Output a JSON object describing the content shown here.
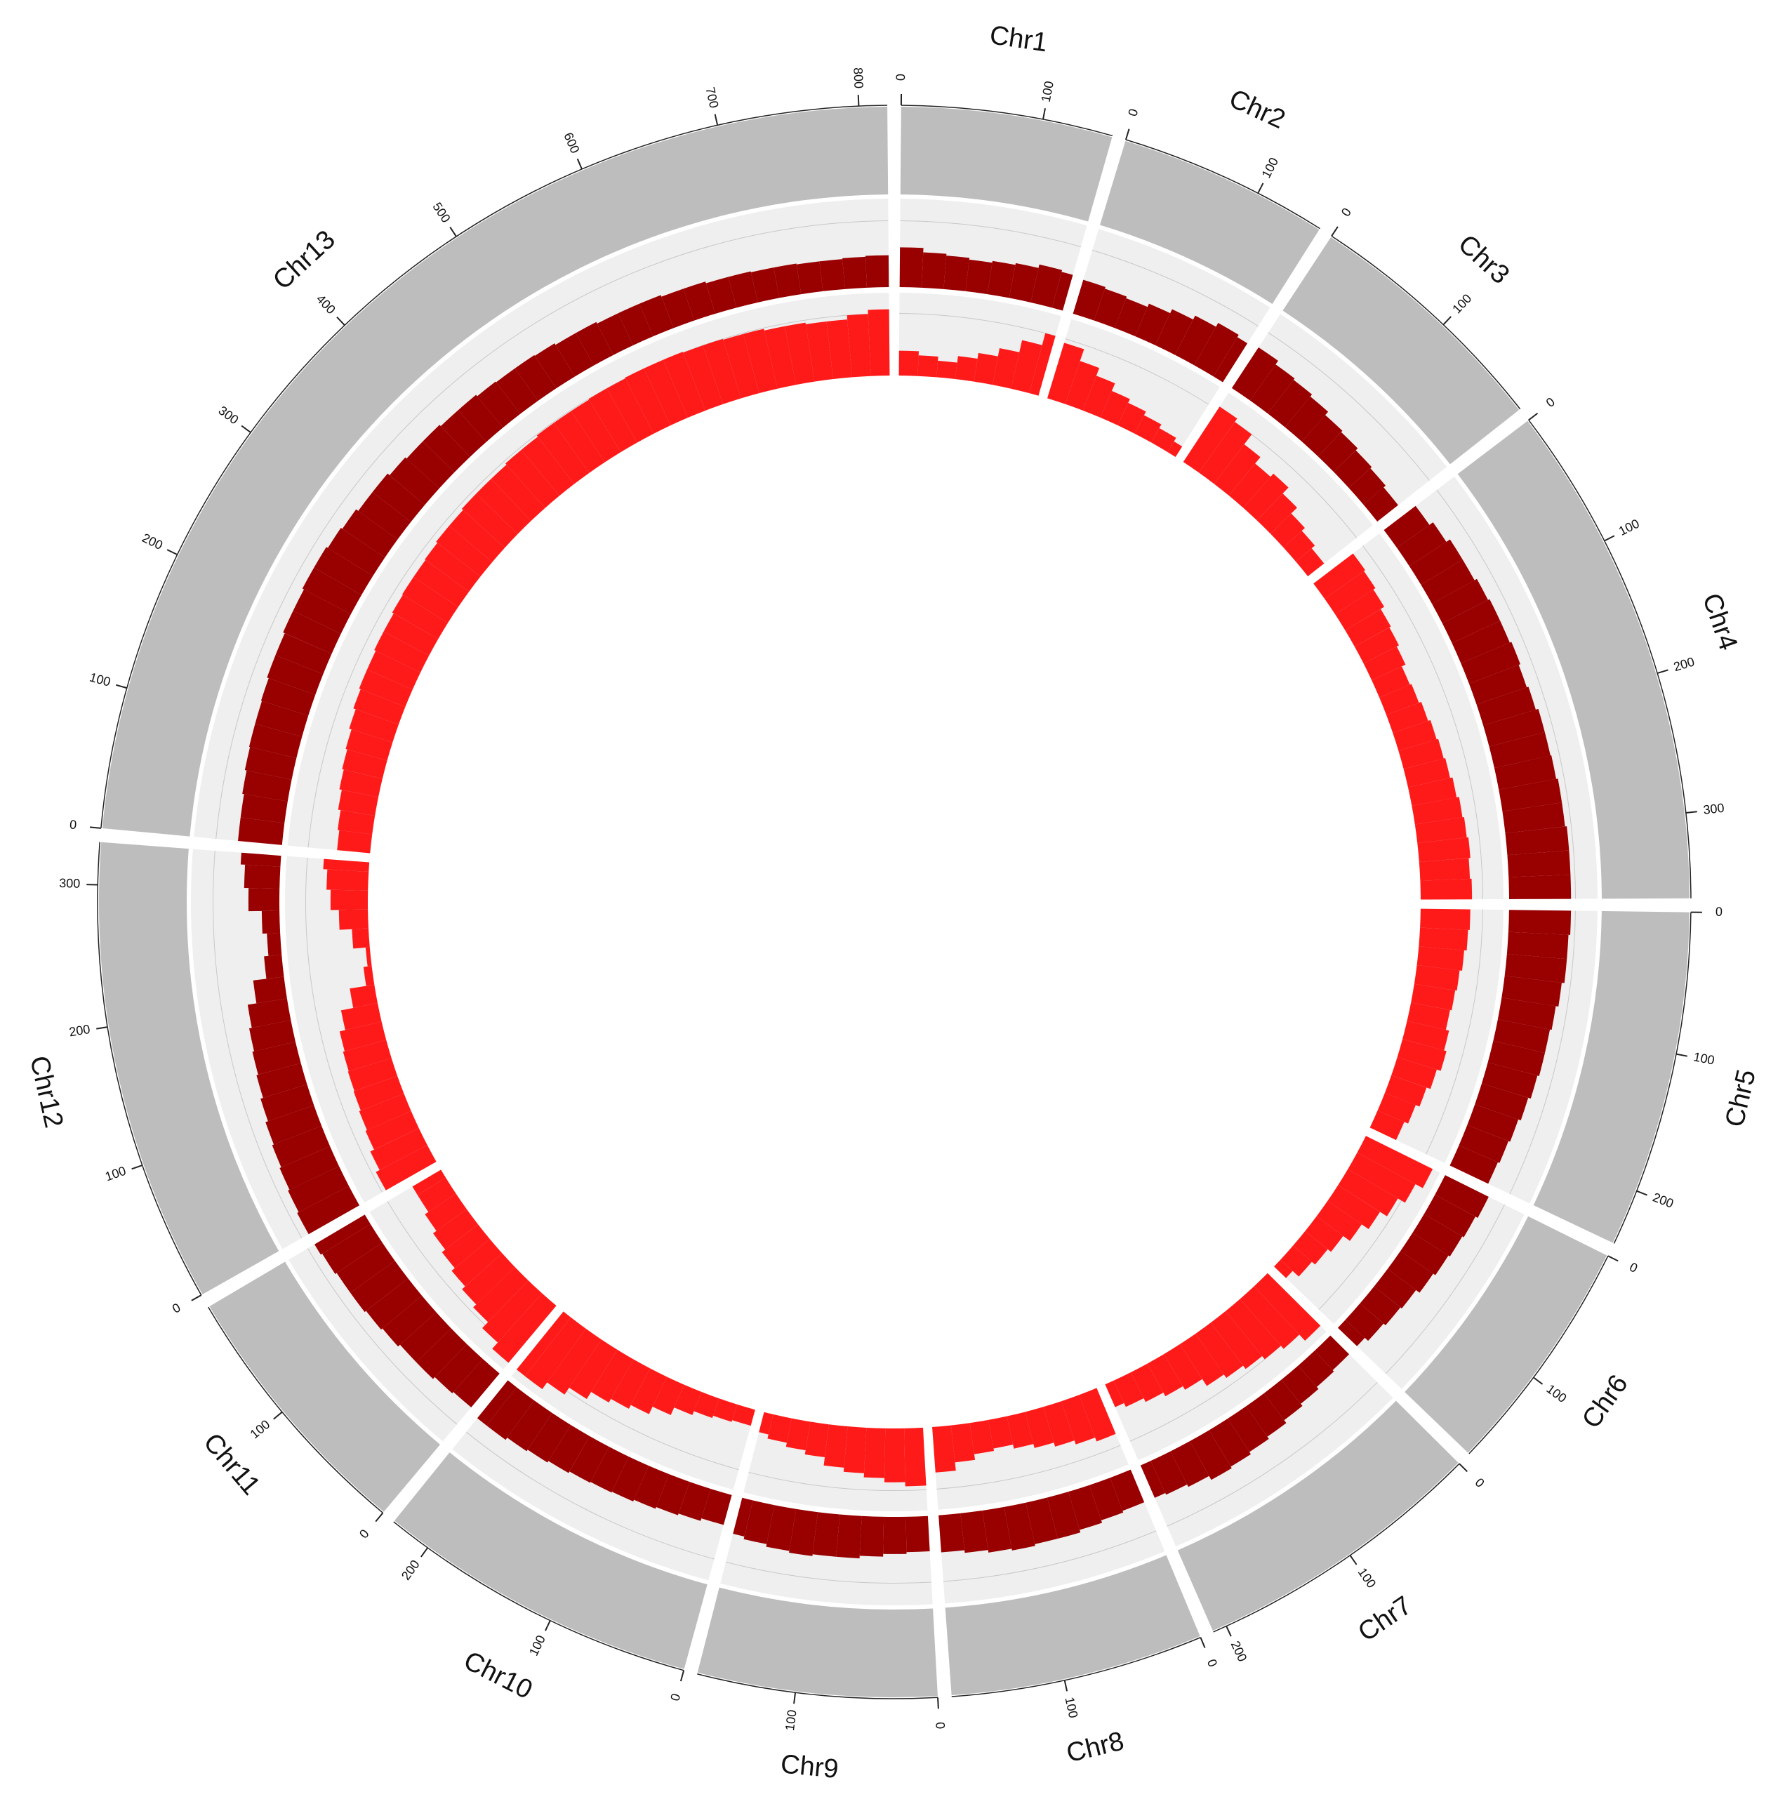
{
  "chart_data": {
    "type": "circos",
    "chromosomes": [
      {
        "name": "Chr1",
        "length": 150,
        "ticks": [
          0,
          100
        ]
      },
      {
        "name": "Chr2",
        "length": 150,
        "ticks": [
          0,
          100
        ]
      },
      {
        "name": "Chr3",
        "length": 180,
        "ticks": [
          0,
          100
        ]
      },
      {
        "name": "Chr4",
        "length": 360,
        "ticks": [
          0,
          100,
          200,
          300
        ]
      },
      {
        "name": "Chr5",
        "length": 240,
        "ticks": [
          0,
          100,
          200
        ]
      },
      {
        "name": "Chr6",
        "length": 170,
        "ticks": [
          0,
          100
        ]
      },
      {
        "name": "Chr7",
        "length": 210,
        "ticks": [
          0,
          100,
          200
        ]
      },
      {
        "name": "Chr8",
        "length": 180,
        "ticks": [
          0,
          100
        ]
      },
      {
        "name": "Chr9",
        "length": 170,
        "ticks": [
          0,
          100
        ]
      },
      {
        "name": "Chr10",
        "length": 230,
        "ticks": [
          0,
          100,
          200
        ]
      },
      {
        "name": "Chr11",
        "length": 190,
        "ticks": [
          0,
          100
        ]
      },
      {
        "name": "Chr12",
        "length": 330,
        "ticks": [
          0,
          100,
          200,
          300
        ]
      },
      {
        "name": "Chr13",
        "length": 820,
        "ticks": [
          0,
          100,
          200,
          300,
          400,
          500,
          600,
          700,
          800
        ]
      }
    ],
    "bin_size": 20,
    "ylim": [
      0,
      100
    ],
    "ideogram_color": "#bdbdbd",
    "track_background": "#efefef",
    "series": [
      {
        "color": "#990000",
        "values": [
          [
            45,
            40,
            38,
            36,
            38,
            40,
            44,
            42
          ],
          [
            40,
            38,
            36,
            40,
            45,
            50,
            55,
            52
          ],
          [
            55,
            50,
            48,
            45,
            40,
            38,
            35,
            33,
            30
          ],
          [
            45,
            50,
            55,
            55,
            58,
            60,
            60,
            62,
            60,
            62,
            65,
            65,
            66,
            68,
            68,
            70,
            70,
            70
          ],
          [
            70,
            68,
            68,
            65,
            62,
            60,
            60,
            58,
            55,
            52,
            50,
            48
          ],
          [
            55,
            52,
            50,
            48,
            45,
            40,
            38,
            35,
            30
          ],
          [
            30,
            32,
            35,
            38,
            42,
            45,
            48,
            50,
            45,
            42,
            40
          ],
          [
            40,
            42,
            45,
            48,
            48,
            50,
            48,
            45,
            42
          ],
          [
            40,
            42,
            45,
            48,
            48,
            50,
            48,
            45,
            42
          ],
          [
            35,
            38,
            40,
            42,
            44,
            45,
            46,
            48,
            50,
            52,
            55,
            55
          ],
          [
            50,
            52,
            55,
            55,
            58,
            60,
            62,
            62,
            64,
            66
          ],
          [
            66,
            64,
            62,
            60,
            58,
            55,
            52,
            50,
            48,
            45,
            35,
            20,
            15,
            20,
            35,
            40,
            45
          ],
          [
            50,
            50,
            52,
            54,
            55,
            55,
            56,
            58,
            58,
            60,
            60,
            62,
            62,
            60,
            58,
            55,
            55,
            52,
            50,
            50,
            48,
            48,
            46,
            45,
            45,
            44,
            42,
            42,
            40,
            40,
            40,
            38,
            38,
            36,
            36,
            35,
            35,
            34,
            34,
            35,
            36
          ]
        ]
      },
      {
        "color": "#ff1a1a",
        "values": [
          [
            30,
            25,
            20,
            28,
            35,
            45,
            60,
            75
          ],
          [
            70,
            55,
            45,
            35,
            30,
            25,
            20,
            15
          ],
          [
            80,
            75,
            60,
            50,
            55,
            45,
            35,
            30,
            25
          ],
          [
            60,
            58,
            55,
            50,
            48,
            45,
            40,
            42,
            45,
            48,
            50,
            52,
            55,
            58,
            60,
            62,
            60,
            62
          ],
          [
            60,
            58,
            55,
            52,
            50,
            48,
            52,
            55,
            50,
            45,
            40,
            35
          ],
          [
            90,
            80,
            70,
            60,
            50,
            40,
            35,
            30,
            20
          ],
          [
            90,
            80,
            75,
            70,
            65,
            60,
            50,
            45,
            40,
            35,
            30
          ],
          [
            60,
            55,
            50,
            45,
            40,
            35,
            38,
            45,
            55
          ],
          [
            70,
            65,
            60,
            55,
            50,
            40,
            35,
            30,
            25
          ],
          [
            20,
            22,
            25,
            30,
            40,
            50,
            55,
            60,
            70,
            80,
            90,
            90
          ],
          [
            90,
            80,
            70,
            65,
            60,
            55,
            50,
            45,
            40,
            40
          ],
          [
            70,
            65,
            60,
            58,
            56,
            55,
            54,
            52,
            45,
            30,
            10,
            5,
            20,
            35,
            45,
            50,
            55
          ],
          [
            40,
            42,
            45,
            48,
            50,
            52,
            55,
            58,
            60,
            60,
            62,
            62,
            64,
            65,
            65,
            66,
            68,
            68,
            70,
            70,
            70,
            72,
            72,
            74,
            74,
            74,
            75,
            75,
            76,
            76,
            76,
            75,
            75,
            74,
            74,
            72,
            72,
            70,
            70,
            75,
            80
          ]
        ]
      }
    ]
  }
}
